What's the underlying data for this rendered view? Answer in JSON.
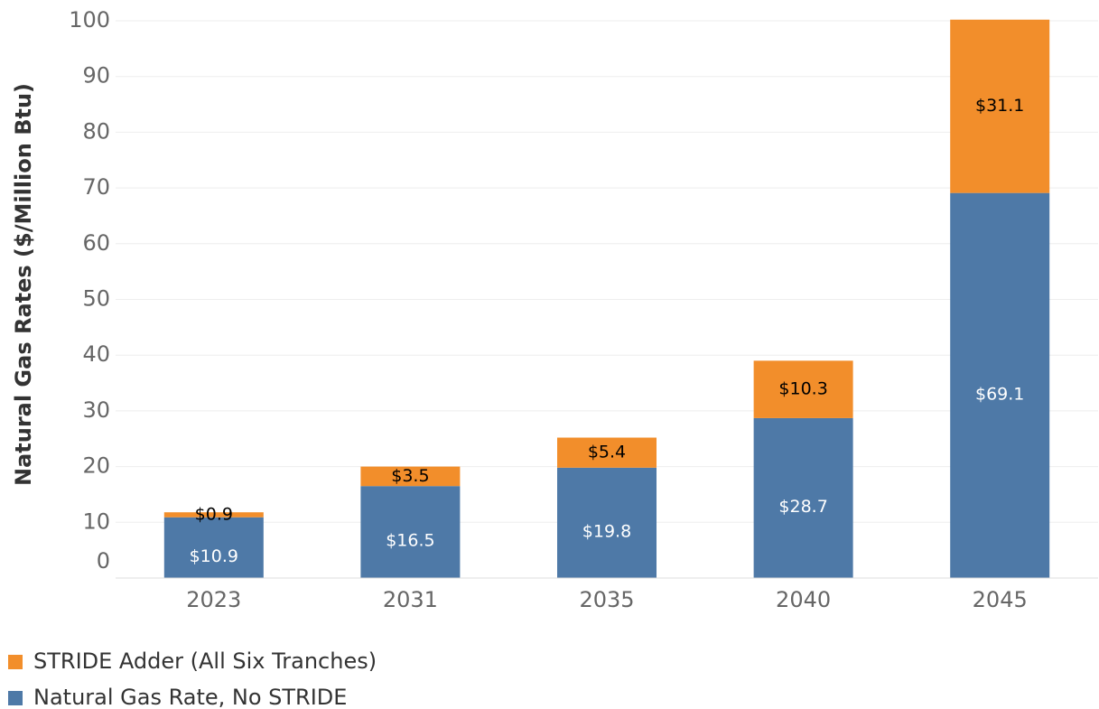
{
  "chart_data": {
    "type": "stacked_bar",
    "y_axis_label": "Natural Gas Rates ($/Million Btu)",
    "categories": [
      "2023",
      "2031",
      "2035",
      "2040",
      "2045"
    ],
    "series": [
      {
        "name": "Natural Gas Rate, No STRIDE",
        "color": "#4e79a7",
        "label_color": "#ffffff",
        "values": [
          10.9,
          16.5,
          19.8,
          28.7,
          69.1
        ],
        "value_labels": [
          "$10.9",
          "$16.5",
          "$19.8",
          "$28.7",
          "$69.1"
        ]
      },
      {
        "name": "STRIDE Adder (All Six Tranches)",
        "color": "#f28e2b",
        "label_color": "#000000",
        "values": [
          0.9,
          3.5,
          5.4,
          10.3,
          31.1
        ],
        "value_labels": [
          "$0.9",
          "$3.5",
          "$5.4",
          "$10.3",
          "$31.1"
        ]
      }
    ],
    "ylim": [
      0,
      100
    ],
    "yticks": [
      0,
      10,
      20,
      30,
      40,
      50,
      60,
      70,
      80,
      90,
      100
    ],
    "grid": true
  }
}
